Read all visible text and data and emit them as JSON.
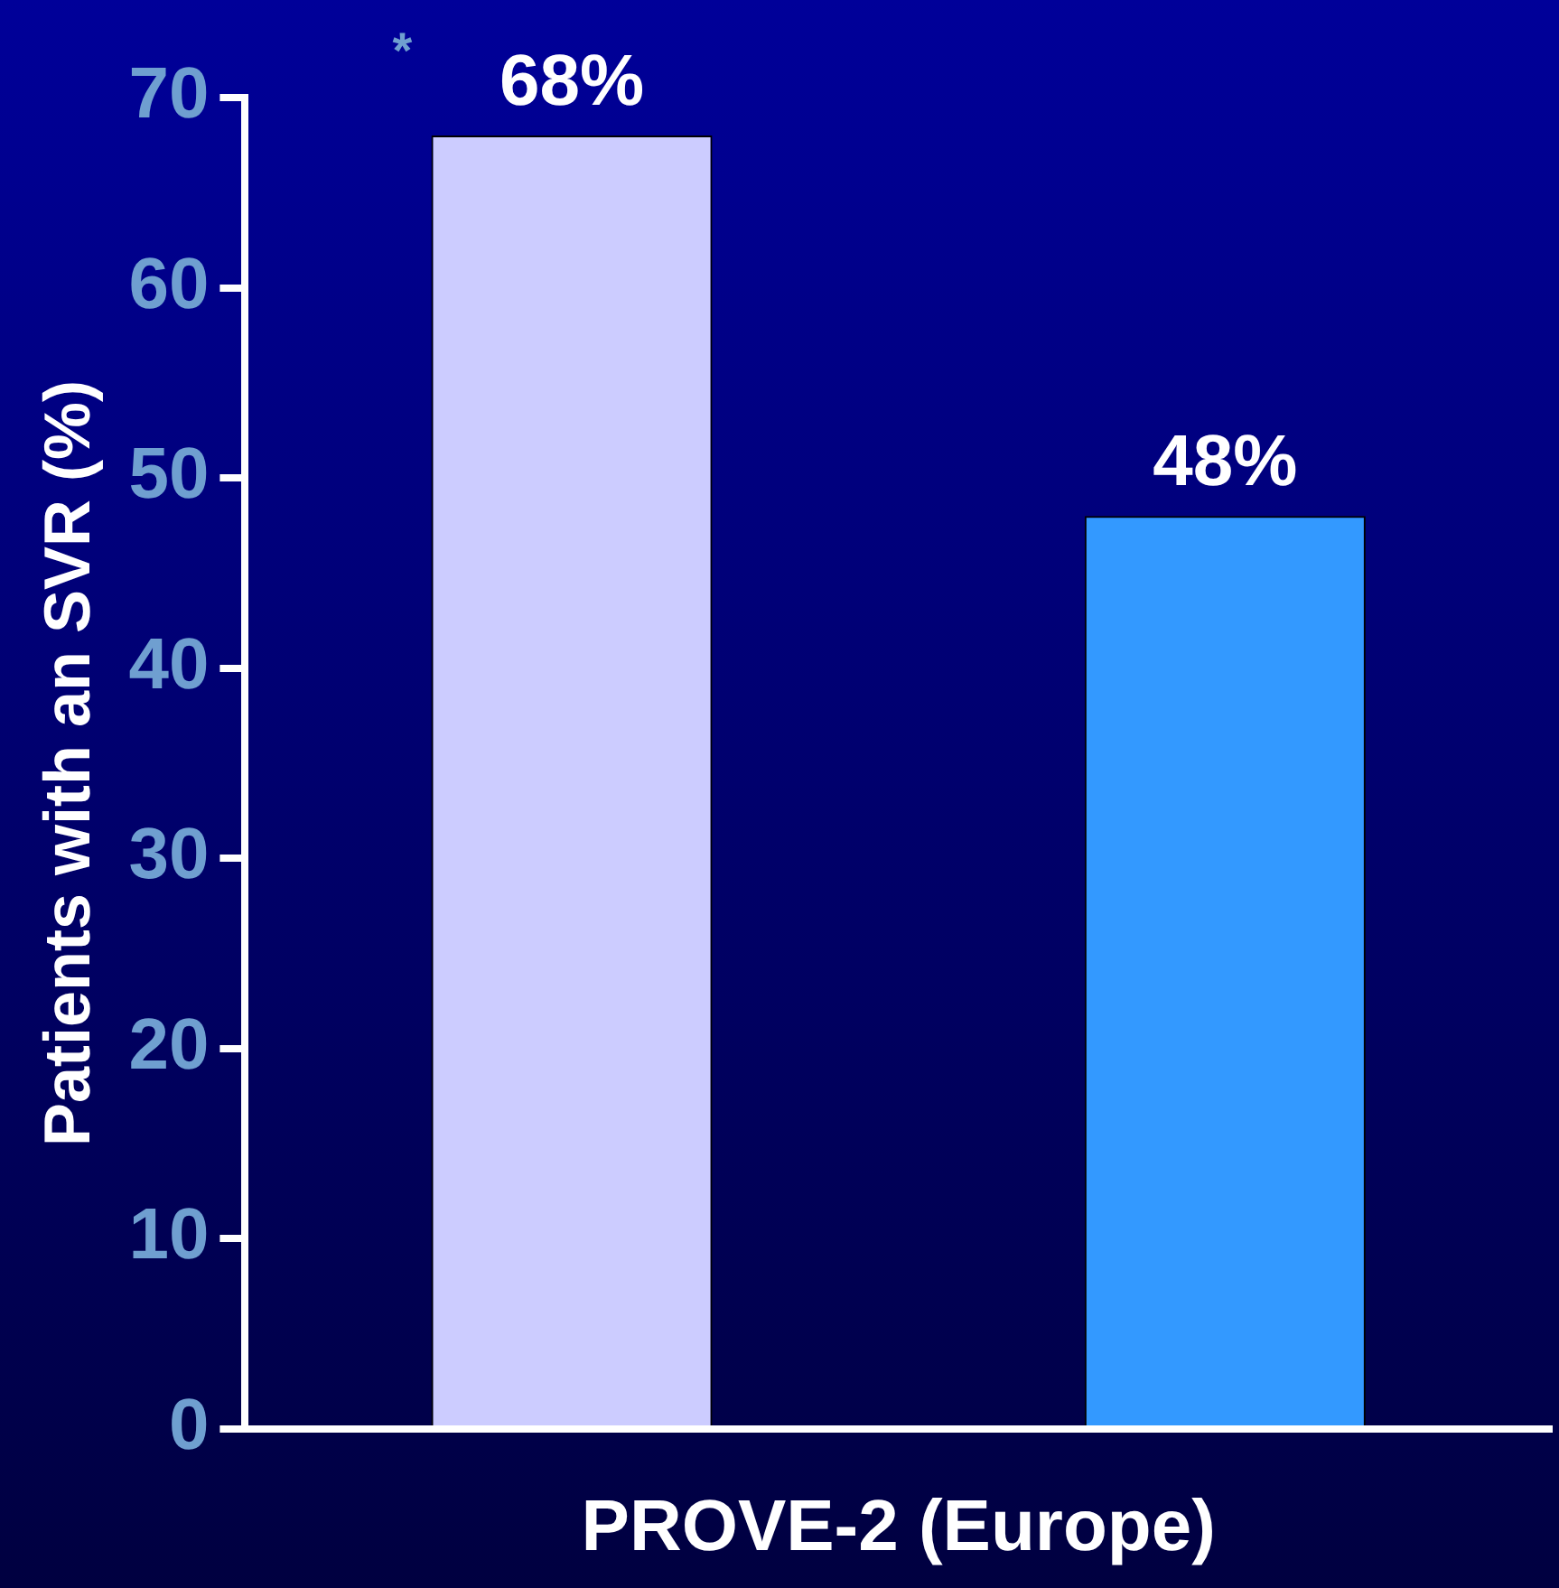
{
  "chart_data": {
    "type": "bar",
    "categories": [
      null,
      null
    ],
    "values": [
      68,
      48
    ],
    "colors": [
      "#ccccff",
      "#3399ff"
    ],
    "value_labels": [
      "68%",
      "48%"
    ],
    "xlabel": "PROVE-2 (Europe)",
    "ylabel": "Patients with an SVR (%)",
    "ylim": [
      0,
      70
    ],
    "yticks": [
      0,
      10,
      20,
      30,
      40,
      50,
      60,
      70
    ],
    "annotations": [
      "*"
    ]
  }
}
